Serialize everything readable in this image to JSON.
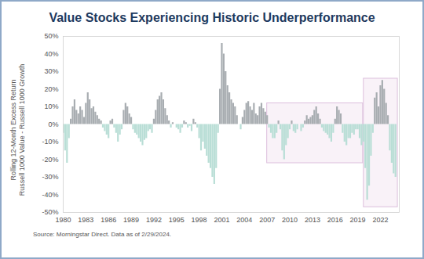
{
  "chart_data": {
    "type": "bar",
    "title": "Value Stocks Experiencing Historic Underperformance",
    "ylabel": "Rolling 12-Month Excess Return\nRussell 1000 Value - Russell 1000 Growth",
    "source": "Source: Morningstar Direct. Data as of 2/29/2024.",
    "x": [
      1980,
      1980.25,
      1980.5,
      1980.75,
      1981,
      1981.25,
      1981.5,
      1981.75,
      1982,
      1982.25,
      1982.5,
      1982.75,
      1983,
      1983.25,
      1983.5,
      1983.75,
      1984,
      1984.25,
      1984.5,
      1984.75,
      1985,
      1985.25,
      1985.5,
      1985.75,
      1986,
      1986.25,
      1986.5,
      1986.75,
      1987,
      1987.25,
      1987.5,
      1987.75,
      1988,
      1988.25,
      1988.5,
      1988.75,
      1989,
      1989.25,
      1989.5,
      1989.75,
      1990,
      1990.25,
      1990.5,
      1990.75,
      1991,
      1991.25,
      1991.5,
      1991.75,
      1992,
      1992.25,
      1992.5,
      1992.75,
      1993,
      1993.25,
      1993.5,
      1993.75,
      1994,
      1994.25,
      1994.5,
      1994.75,
      1995,
      1995.25,
      1995.5,
      1995.75,
      1996,
      1996.25,
      1996.5,
      1996.75,
      1997,
      1997.25,
      1997.5,
      1997.75,
      1998,
      1998.25,
      1998.5,
      1998.75,
      1999,
      1999.25,
      1999.5,
      1999.75,
      2000,
      2000.25,
      2000.5,
      2000.75,
      2001,
      2001.25,
      2001.5,
      2001.75,
      2002,
      2002.25,
      2002.5,
      2002.75,
      2003,
      2003.25,
      2003.5,
      2003.75,
      2004,
      2004.25,
      2004.5,
      2004.75,
      2005,
      2005.25,
      2005.5,
      2005.75,
      2006,
      2006.25,
      2006.5,
      2006.75,
      2007,
      2007.25,
      2007.5,
      2007.75,
      2008,
      2008.25,
      2008.5,
      2008.75,
      2009,
      2009.25,
      2009.5,
      2009.75,
      2010,
      2010.25,
      2010.5,
      2010.75,
      2011,
      2011.25,
      2011.5,
      2011.75,
      2012,
      2012.25,
      2012.5,
      2012.75,
      2013,
      2013.25,
      2013.5,
      2013.75,
      2014,
      2014.25,
      2014.5,
      2014.75,
      2015,
      2015.25,
      2015.5,
      2015.75,
      2016,
      2016.25,
      2016.5,
      2016.75,
      2017,
      2017.25,
      2017.5,
      2017.75,
      2018,
      2018.25,
      2018.5,
      2018.75,
      2019,
      2019.25,
      2019.5,
      2019.75,
      2020,
      2020.25,
      2020.5,
      2020.75,
      2021,
      2021.25,
      2021.5,
      2021.75,
      2022,
      2022.25,
      2022.5,
      2022.75,
      2023,
      2023.25,
      2023.5,
      2023.75,
      2024
    ],
    "values": [
      -5,
      -15,
      -22,
      -8,
      3,
      10,
      14,
      8,
      6,
      10,
      8,
      4,
      12,
      18,
      14,
      9,
      10,
      7,
      5,
      3,
      2,
      -2,
      -4,
      -6,
      -8,
      2,
      3,
      -2,
      -5,
      -10,
      -6,
      -3,
      8,
      12,
      10,
      6,
      4,
      -3,
      -5,
      -6,
      -8,
      -10,
      -12,
      -9,
      -8,
      -4,
      -3,
      -5,
      3,
      8,
      14,
      16,
      18,
      14,
      9,
      5,
      2,
      -2,
      1,
      0,
      -2,
      -3,
      -5,
      -2,
      2,
      1,
      -2,
      -1,
      -4,
      3,
      1,
      -2,
      -8,
      -15,
      -10,
      -14,
      -18,
      -22,
      -25,
      -30,
      -34,
      -25,
      -5,
      20,
      46,
      40,
      30,
      22,
      18,
      14,
      12,
      10,
      5,
      0,
      -3,
      4,
      8,
      12,
      13,
      10,
      8,
      12,
      6,
      5,
      10,
      12,
      9,
      7,
      5,
      -2,
      -5,
      -8,
      -8,
      -5,
      2,
      -3,
      -15,
      -20,
      -12,
      -8,
      -3,
      2,
      -4,
      -5,
      -3,
      0,
      -4,
      -2,
      2,
      5,
      3,
      4,
      5,
      8,
      10,
      6,
      3,
      -2,
      -4,
      -5,
      -6,
      -8,
      -10,
      -5,
      3,
      10,
      8,
      6,
      -5,
      -10,
      -12,
      -8,
      -8,
      -5,
      -6,
      -3,
      -3,
      -8,
      -12,
      -10,
      -25,
      -43,
      -35,
      -18,
      -5,
      15,
      18,
      10,
      22,
      25,
      20,
      12,
      5,
      -15,
      -22,
      -28,
      -30
    ],
    "colors": [
      "#b9ded6",
      "#b9ded6",
      "#b9ded6",
      "#b9ded6",
      "#a8adb1",
      "#a8adb1",
      "#a8adb1",
      "#a8adb1",
      "#a8adb1",
      "#a8adb1",
      "#a8adb1",
      "#a8adb1",
      "#a8adb1",
      "#a8adb1",
      "#a8adb1",
      "#a8adb1",
      "#a8adb1",
      "#a8adb1",
      "#a8adb1",
      "#a8adb1",
      "#a8adb1",
      "#b9ded6",
      "#b9ded6",
      "#b9ded6",
      "#b9ded6",
      "#a8adb1",
      "#a8adb1",
      "#b9ded6",
      "#b9ded6",
      "#b9ded6",
      "#b9ded6",
      "#b9ded6",
      "#a8adb1",
      "#a8adb1",
      "#a8adb1",
      "#a8adb1",
      "#a8adb1",
      "#b9ded6",
      "#b9ded6",
      "#b9ded6",
      "#b9ded6",
      "#b9ded6",
      "#b9ded6",
      "#b9ded6",
      "#b9ded6",
      "#b9ded6",
      "#b9ded6",
      "#b9ded6",
      "#a8adb1",
      "#a8adb1",
      "#a8adb1",
      "#a8adb1",
      "#a8adb1",
      "#a8adb1",
      "#a8adb1",
      "#a8adb1",
      "#a8adb1",
      "#b9ded6",
      "#a8adb1",
      "#a8adb1",
      "#b9ded6",
      "#b9ded6",
      "#b9ded6",
      "#b9ded6",
      "#a8adb1",
      "#a8adb1",
      "#b9ded6",
      "#b9ded6",
      "#b9ded6",
      "#a8adb1",
      "#a8adb1",
      "#b9ded6",
      "#b9ded6",
      "#b9ded6",
      "#b9ded6",
      "#b9ded6",
      "#b9ded6",
      "#b9ded6",
      "#b9ded6",
      "#b9ded6",
      "#b9ded6",
      "#b9ded6",
      "#b9ded6",
      "#a8adb1",
      "#a8adb1",
      "#a8adb1",
      "#a8adb1",
      "#a8adb1",
      "#a8adb1",
      "#a8adb1",
      "#a8adb1",
      "#a8adb1",
      "#a8adb1",
      "#a8adb1",
      "#b9ded6",
      "#a8adb1",
      "#a8adb1",
      "#a8adb1",
      "#a8adb1",
      "#a8adb1",
      "#a8adb1",
      "#a8adb1",
      "#a8adb1",
      "#a8adb1",
      "#a8adb1",
      "#a8adb1",
      "#a8adb1",
      "#a8adb1",
      "#a8adb1",
      "#b9ded6",
      "#b9ded6",
      "#b9ded6",
      "#b9ded6",
      "#b9ded6",
      "#a8adb1",
      "#b9ded6",
      "#b9ded6",
      "#b9ded6",
      "#b9ded6",
      "#b9ded6",
      "#b9ded6",
      "#a8adb1",
      "#b9ded6",
      "#b9ded6",
      "#b9ded6",
      "#a8adb1",
      "#b9ded6",
      "#b9ded6",
      "#a8adb1",
      "#a8adb1",
      "#a8adb1",
      "#a8adb1",
      "#a8adb1",
      "#a8adb1",
      "#a8adb1",
      "#a8adb1",
      "#a8adb1",
      "#b9ded6",
      "#b9ded6",
      "#b9ded6",
      "#b9ded6",
      "#b9ded6",
      "#b9ded6",
      "#b9ded6",
      "#a8adb1",
      "#a8adb1",
      "#a8adb1",
      "#a8adb1",
      "#b9ded6",
      "#b9ded6",
      "#b9ded6",
      "#b9ded6",
      "#b9ded6",
      "#b9ded6",
      "#b9ded6",
      "#b9ded6",
      "#b9ded6",
      "#b9ded6",
      "#b9ded6",
      "#b9ded6",
      "#b9ded6",
      "#b9ded6",
      "#b9ded6",
      "#b9ded6",
      "#b9ded6",
      "#a8adb1",
      "#a8adb1",
      "#a8adb1",
      "#a8adb1",
      "#a8adb1",
      "#a8adb1",
      "#a8adb1",
      "#a8adb1",
      "#b9ded6",
      "#b9ded6",
      "#b9ded6",
      "#b9ded6"
    ],
    "xlim": [
      1980,
      2024.5
    ],
    "xticks": [
      1980,
      1983,
      1986,
      1989,
      1992,
      1995,
      1998,
      2001,
      2004,
      2007,
      2010,
      2013,
      2016,
      2019,
      2022
    ],
    "ylim": [
      -50,
      50
    ],
    "yticks": [
      {
        "value": -50,
        "label": "-50%"
      },
      {
        "value": -40,
        "label": "-40%"
      },
      {
        "value": -30,
        "label": "-30%"
      },
      {
        "value": -20,
        "label": "-20%"
      },
      {
        "value": -10,
        "label": "-10%"
      },
      {
        "value": 0,
        "label": "0%"
      },
      {
        "value": 10,
        "label": "10%"
      },
      {
        "value": 20,
        "label": "20%"
      },
      {
        "value": 30,
        "label": "30%"
      },
      {
        "value": 40,
        "label": "40%"
      },
      {
        "value": 50,
        "label": "50%"
      }
    ],
    "highlights": [
      {
        "x": [
          2007,
          2019.7
        ],
        "y": [
          -22,
          12
        ]
      },
      {
        "x": [
          2019.8,
          2024.3
        ],
        "y": [
          -47,
          26
        ]
      }
    ],
    "grid": false
  }
}
